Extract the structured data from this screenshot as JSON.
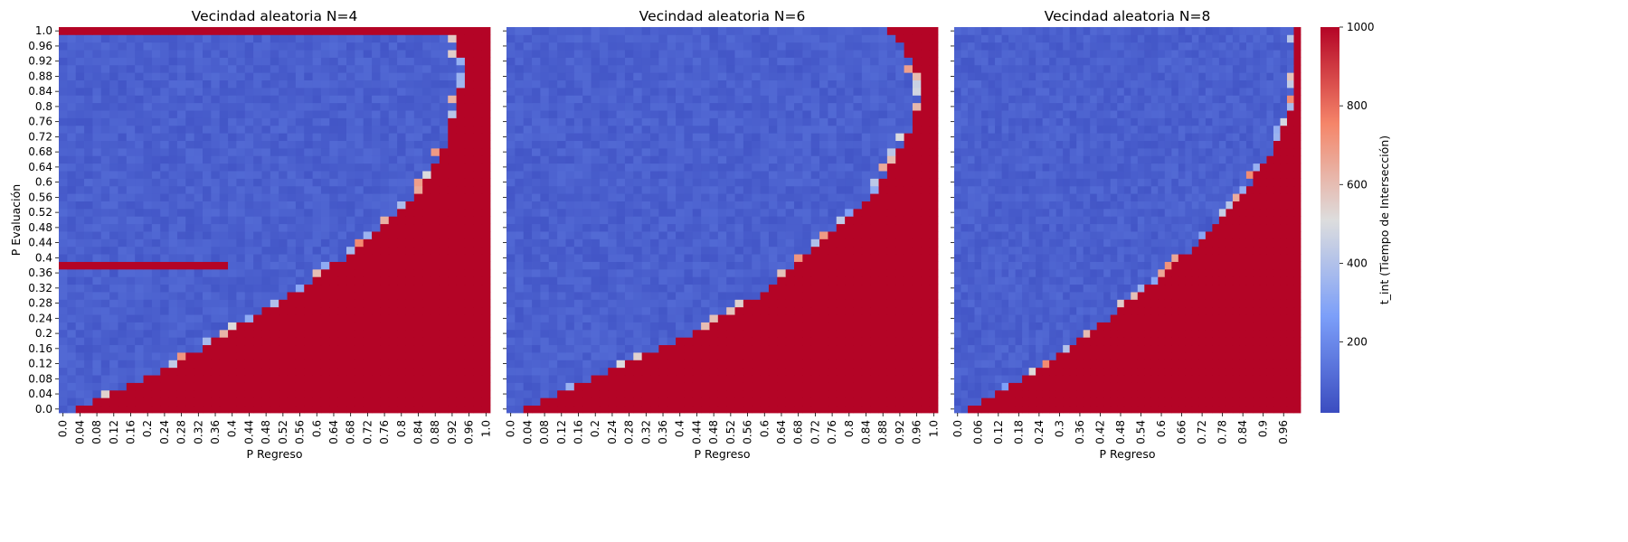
{
  "chart_data": [
    {
      "type": "heatmap",
      "title": "Vecindad aleatoria N=4",
      "xlabel": "P Regreso",
      "ylabel": "P Evaluación",
      "x_ticks": [
        "0.0",
        "0.04",
        "0.08",
        "0.12",
        "0.16",
        "0.2",
        "0.24",
        "0.28",
        "0.32",
        "0.36",
        "0.4",
        "0.44",
        "0.48",
        "0.52",
        "0.56",
        "0.6",
        "0.64",
        "0.68",
        "0.72",
        "0.76",
        "0.8",
        "0.84",
        "0.88",
        "0.92",
        "0.96",
        "1.0"
      ],
      "y_ticks": [
        "0.0",
        "0.04",
        "0.08",
        "0.12",
        "0.16",
        "0.2",
        "0.24",
        "0.28",
        "0.32",
        "0.36",
        "0.4",
        "0.44",
        "0.48",
        "0.52",
        "0.56",
        "0.6",
        "0.64",
        "0.68",
        "0.72",
        "0.76",
        "0.8",
        "0.84",
        "0.88",
        "0.92",
        "0.96",
        "1.0"
      ],
      "grid": {
        "nx": 51,
        "ny": 51,
        "x_range": [
          0,
          1
        ],
        "y_range": [
          0,
          1
        ]
      },
      "boundary_p_regreso": [
        0.04,
        0.08,
        0.12,
        0.16,
        0.2,
        0.24,
        0.27,
        0.3,
        0.33,
        0.36,
        0.39,
        0.42,
        0.45,
        0.48,
        0.51,
        0.54,
        0.57,
        0.59,
        0.62,
        0.64,
        0.67,
        0.69,
        0.71,
        0.74,
        0.76,
        0.78,
        0.8,
        0.82,
        0.83,
        0.85,
        0.86,
        0.87,
        0.88,
        0.89,
        0.9,
        0.91,
        0.91,
        0.92,
        0.92,
        0.93,
        0.93,
        0.94,
        0.94,
        0.95,
        0.95,
        0.95,
        0.95,
        0.94,
        0.94,
        0.93,
        0.89
      ],
      "red_band_rows": {
        "p_evaluacion": [
          0.37,
          0.38
        ],
        "x_split": 0.39,
        "left_row": 0.38,
        "right_row": 0.37
      },
      "red_top_row_until": 0.89,
      "low_value": 20,
      "high_value": 1000
    },
    {
      "type": "heatmap",
      "title": "Vecindad aleatoria N=6",
      "xlabel": "P Regreso",
      "ylabel": "",
      "x_ticks": [
        "0.0",
        "0.04",
        "0.08",
        "0.12",
        "0.16",
        "0.2",
        "0.24",
        "0.28",
        "0.32",
        "0.36",
        "0.4",
        "0.44",
        "0.48",
        "0.52",
        "0.56",
        "0.6",
        "0.64",
        "0.68",
        "0.72",
        "0.76",
        "0.8",
        "0.84",
        "0.88",
        "0.92",
        "0.96",
        "1.0"
      ],
      "y_ticks": [],
      "grid": {
        "nx": 51,
        "ny": 51,
        "x_range": [
          0,
          1
        ],
        "y_range": [
          0,
          1
        ]
      },
      "boundary_p_regreso": [
        0.04,
        0.08,
        0.12,
        0.16,
        0.2,
        0.24,
        0.28,
        0.32,
        0.36,
        0.4,
        0.44,
        0.47,
        0.5,
        0.53,
        0.56,
        0.59,
        0.61,
        0.63,
        0.66,
        0.68,
        0.7,
        0.72,
        0.74,
        0.76,
        0.78,
        0.8,
        0.82,
        0.84,
        0.85,
        0.87,
        0.88,
        0.89,
        0.9,
        0.91,
        0.92,
        0.93,
        0.94,
        0.95,
        0.96,
        0.96,
        0.97,
        0.97,
        0.98,
        0.98,
        0.97,
        0.96,
        0.95,
        0.94,
        0.93,
        0.92,
        0.9
      ],
      "low_value": 20,
      "high_value": 1000
    },
    {
      "type": "heatmap",
      "title": "Vecindad aleatoria N=8",
      "xlabel": "P Regreso",
      "ylabel": "",
      "x_ticks": [
        "0.0",
        "0.06",
        "0.12",
        "0.18",
        "0.24",
        "0.3",
        "0.36",
        "0.42",
        "0.48",
        "0.54",
        "0.6",
        "0.66",
        "0.72",
        "0.78",
        "0.84",
        "0.9",
        "0.96"
      ],
      "y_ticks": [],
      "grid": {
        "nx": 51,
        "ny": 51,
        "x_range": [
          0,
          1.02
        ],
        "y_range": [
          0,
          1
        ]
      },
      "boundary_p_regreso": [
        0.04,
        0.08,
        0.12,
        0.16,
        0.2,
        0.24,
        0.27,
        0.3,
        0.33,
        0.36,
        0.39,
        0.42,
        0.45,
        0.48,
        0.51,
        0.54,
        0.57,
        0.6,
        0.62,
        0.65,
        0.67,
        0.7,
        0.72,
        0.74,
        0.76,
        0.78,
        0.8,
        0.82,
        0.84,
        0.86,
        0.88,
        0.89,
        0.91,
        0.92,
        0.94,
        0.95,
        0.96,
        0.97,
        0.98,
        0.99,
        1.0,
        1.0,
        1.0,
        1.0,
        1.01,
        1.01,
        1.01,
        1.01,
        1.01,
        1.01,
        1.01
      ],
      "low_value": 20,
      "high_value": 1000
    }
  ],
  "colorbar": {
    "label": "t_int (Tiempo de Intersección)",
    "ticks": [
      "200",
      "400",
      "600",
      "800",
      "1000"
    ],
    "tick_values": [
      200,
      400,
      600,
      800,
      1000
    ],
    "range": [
      20,
      1000
    ],
    "colormap": "coolwarm",
    "low_color": "#3b4cc0",
    "mid_color": "#dddddd",
    "high_color": "#b40426"
  }
}
